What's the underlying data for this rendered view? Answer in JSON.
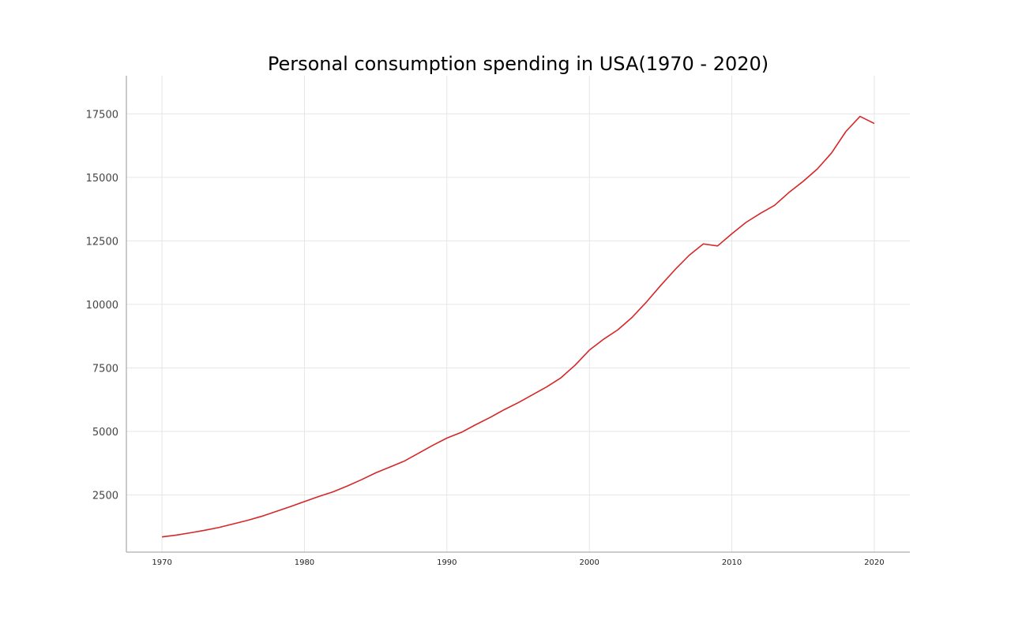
{
  "chart_data": {
    "type": "line",
    "title": "Personal consumption spending in USA(1970 - 2020)",
    "xlabel": "",
    "ylabel": "",
    "x": [
      1970,
      1971,
      1972,
      1973,
      1974,
      1975,
      1976,
      1977,
      1978,
      1979,
      1980,
      1981,
      1982,
      1983,
      1984,
      1985,
      1986,
      1987,
      1988,
      1989,
      1990,
      1991,
      1992,
      1993,
      1994,
      1995,
      1996,
      1997,
      1998,
      1999,
      2000,
      2001,
      2002,
      2003,
      2004,
      2005,
      2006,
      2007,
      2008,
      2009,
      2010,
      2011,
      2012,
      2013,
      2014,
      2015,
      2016,
      2017,
      2018,
      2019,
      2020
    ],
    "series": [
      {
        "color": "#d62728",
        "values": [
          850,
          920,
          1010,
          1110,
          1220,
          1360,
          1500,
          1660,
          1850,
          2040,
          2240,
          2440,
          2620,
          2850,
          3100,
          3370,
          3600,
          3830,
          4140,
          4450,
          4740,
          4960,
          5260,
          5540,
          5850,
          6130,
          6440,
          6750,
          7110,
          7610,
          8200,
          8630,
          9000,
          9490,
          10090,
          10740,
          11360,
          11930,
          12380,
          12300,
          12780,
          13230,
          13580,
          13900,
          14400,
          14840,
          15330,
          15960,
          16800,
          17400,
          17120
        ]
      }
    ],
    "xlim": [
      1967.5,
      2022.5
    ],
    "ylim": [
      250,
      19000
    ],
    "x_ticks": [
      1970,
      1980,
      1990,
      2000,
      2010,
      2020
    ],
    "y_ticks": [
      2500,
      5000,
      7500,
      10000,
      12500,
      15000,
      17500
    ],
    "x_tick_labels": [
      "1970",
      "1980",
      "1990",
      "2000",
      "2010",
      "2020"
    ],
    "y_tick_labels": [
      "2500",
      "5000",
      "7500",
      "10000",
      "12500",
      "15000",
      "17500"
    ],
    "grid": true,
    "legend": "none"
  }
}
